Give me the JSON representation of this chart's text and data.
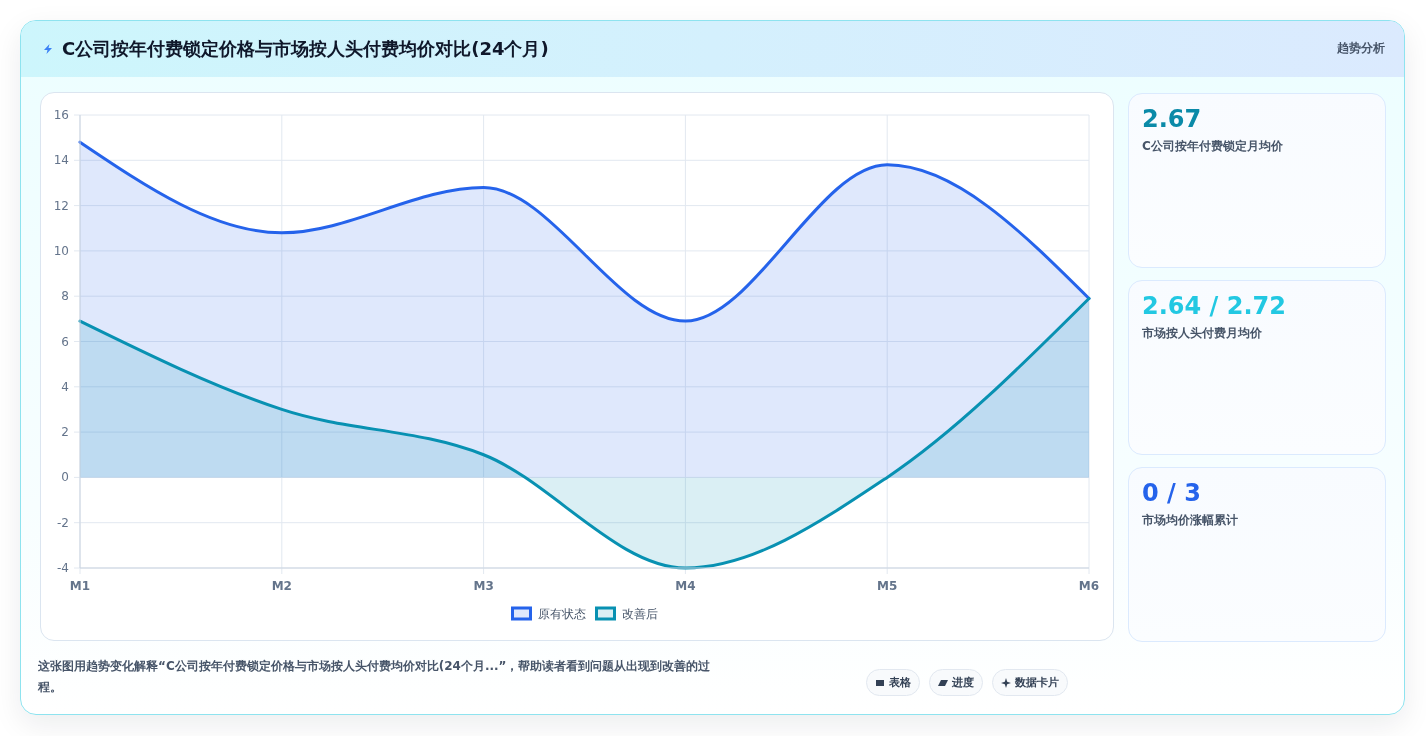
{
  "chart_data": [
    {
      "type": "area",
      "title": "C公司按年付费锁定价格与市场按人头付费均价对比(24个月)",
      "categories": [
        "M1",
        "M2",
        "M3",
        "M4",
        "M5",
        "M6"
      ],
      "series": [
        {
          "name": "原有状态",
          "color": "#2563eb",
          "values": [
            14.8,
            10.8,
            12.8,
            6.9,
            13.8,
            7.9
          ]
        },
        {
          "name": "改善后",
          "color": "#0891b2",
          "values": [
            6.9,
            3.0,
            1.0,
            -4.0,
            0.0,
            7.9
          ]
        }
      ],
      "ylim": [
        -4,
        16
      ],
      "yticks": [
        -4,
        -2,
        0,
        2,
        4,
        6,
        8,
        10,
        12,
        14,
        16
      ],
      "grid": true,
      "legend": "bottom",
      "annotations": [
        "这张图用趋势变化解释“C公司按年付费锁定价格与市场按人头付费均价对比(24个月...”，帮助读者看到问题从出现到改善的过程。",
        "表格",
        "进度",
        "数据卡片"
      ]
    },
    {
      "type": "other",
      "title": "趋势分析",
      "annotations": [
        "2.67",
        "C公司按年付费锁定月均价",
        "2.64 / 2.72",
        "市场按人头付费月均价",
        "0 / 3",
        "市场均价涨幅累计"
      ]
    }
  ]
}
